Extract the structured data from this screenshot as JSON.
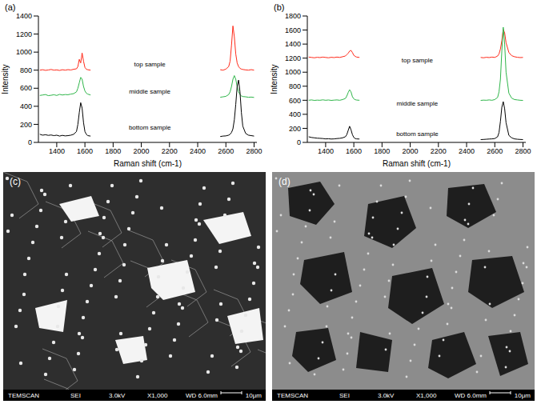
{
  "chart_data": [
    {
      "panel": "(a)",
      "type": "line",
      "x_label": "Raman shift (cm-1)",
      "y_label": "Intensity",
      "xlim": [
        1270,
        2820
      ],
      "xticks": [
        1400,
        1600,
        1800,
        2000,
        2200,
        2400,
        2600,
        2800
      ],
      "ylim": [
        0,
        1400
      ],
      "yticks": [
        0,
        200,
        400,
        600,
        800,
        1000,
        1200,
        1400
      ],
      "grid": false,
      "x": [
        1280,
        1300,
        1320,
        1340,
        1360,
        1380,
        1400,
        1420,
        1440,
        1460,
        1480,
        1500,
        1520,
        1540,
        1550,
        1560,
        1570,
        1580,
        1590,
        1600,
        1610,
        1620,
        1640,
        2100,
        2560,
        2580,
        2600,
        2620,
        2630,
        2640,
        2650,
        2660,
        2670,
        2680,
        2690,
        2700,
        2710,
        2720,
        2740,
        2760,
        2780,
        2800
      ],
      "series": [
        {
          "name": "top sample",
          "color": "#ff2a1a",
          "label_x": 2060,
          "label_y": 870,
          "values": [
            800,
            805,
            798,
            802,
            808,
            800,
            803,
            797,
            805,
            800,
            806,
            802,
            810,
            815,
            840,
            920,
            880,
            990,
            900,
            830,
            810,
            805,
            800,
            null,
            805,
            800,
            812,
            840,
            900,
            1080,
            1290,
            1170,
            980,
            880,
            840,
            820,
            812,
            808,
            803,
            800,
            806,
            800
          ]
        },
        {
          "name": "middle sample",
          "color": "#2fb64a",
          "label_x": 2060,
          "label_y": 570,
          "values": [
            520,
            525,
            530,
            518,
            522,
            528,
            520,
            532,
            525,
            530,
            528,
            535,
            540,
            560,
            600,
            660,
            720,
            700,
            620,
            570,
            545,
            535,
            525,
            null,
            500,
            505,
            510,
            530,
            560,
            620,
            700,
            740,
            700,
            620,
            560,
            530,
            515,
            508,
            505,
            500,
            502,
            498
          ]
        },
        {
          "name": "bottom sample",
          "color": "#000000",
          "label_x": 2060,
          "label_y": 170,
          "values": [
            90,
            80,
            85,
            78,
            82,
            75,
            80,
            70,
            78,
            72,
            75,
            80,
            90,
            120,
            200,
            330,
            440,
            380,
            220,
            120,
            90,
            75,
            70,
            null,
            65,
            70,
            72,
            80,
            90,
            110,
            150,
            250,
            420,
            620,
            690,
            560,
            330,
            180,
            100,
            80,
            75,
            70
          ]
        }
      ]
    },
    {
      "panel": "(b)",
      "type": "line",
      "x_label": "Raman shift (cm-1)",
      "y_label": "Intensity",
      "xlim": [
        1270,
        2820
      ],
      "xticks": [
        1400,
        1600,
        1800,
        2000,
        2200,
        2400,
        2600,
        2800
      ],
      "ylim": [
        0,
        1800
      ],
      "yticks": [
        0,
        200,
        400,
        600,
        800,
        1000,
        1200,
        1400,
        1600,
        1800
      ],
      "grid": false,
      "x": [
        1280,
        1300,
        1320,
        1340,
        1360,
        1380,
        1400,
        1420,
        1440,
        1460,
        1480,
        1500,
        1520,
        1540,
        1550,
        1560,
        1570,
        1580,
        1590,
        1600,
        1610,
        1620,
        1640,
        2080,
        2500,
        2520,
        2540,
        2560,
        2580,
        2600,
        2620,
        2630,
        2640,
        2650,
        2660,
        2670,
        2680,
        2700,
        2720,
        2740,
        2760,
        2780,
        2800
      ],
      "series": [
        {
          "name": "top sample",
          "color": "#ff2a1a",
          "label_x": 2050,
          "label_y": 1170,
          "values": [
            1215,
            1210,
            1205,
            1212,
            1208,
            1215,
            1210,
            1205,
            1212,
            1208,
            1215,
            1210,
            1220,
            1230,
            1250,
            1270,
            1300,
            1310,
            1280,
            1240,
            1225,
            1215,
            1210,
            null,
            1210,
            1205,
            1212,
            1208,
            1215,
            1210,
            1230,
            1260,
            1330,
            1450,
            1610,
            1560,
            1420,
            1280,
            1235,
            1220,
            1212,
            1208,
            1210
          ]
        },
        {
          "name": "middle sample",
          "color": "#2fb64a",
          "label_x": 2050,
          "label_y": 560,
          "values": [
            600,
            605,
            598,
            602,
            600,
            606,
            600,
            604,
            598,
            602,
            605,
            600,
            610,
            625,
            660,
            710,
            750,
            720,
            650,
            620,
            608,
            603,
            600,
            null,
            598,
            602,
            600,
            605,
            600,
            610,
            640,
            720,
            900,
            1300,
            1640,
            1400,
            1000,
            700,
            630,
            610,
            605,
            600,
            598
          ]
        },
        {
          "name": "bottom sample",
          "color": "#000000",
          "label_x": 2050,
          "label_y": 120,
          "values": [
            80,
            70,
            65,
            60,
            58,
            55,
            50,
            52,
            48,
            50,
            55,
            58,
            65,
            80,
            110,
            170,
            230,
            180,
            110,
            70,
            55,
            50,
            48,
            null,
            40,
            42,
            45,
            48,
            50,
            55,
            80,
            140,
            300,
            500,
            580,
            480,
            280,
            100,
            65,
            50,
            45,
            42,
            40
          ]
        }
      ]
    }
  ],
  "images": [
    {
      "panel": "(c)",
      "info": [
        "TEMSCAN",
        "SEI",
        "3.0kV",
        "X1,000",
        "WD 6.0mm"
      ],
      "scale_bar": "10μm"
    },
    {
      "panel": "(d)",
      "info": [
        "TEMSCAN",
        "SEI",
        "3.0kV",
        "X1,000",
        "WD 6.0mm"
      ],
      "scale_bar": "10μm"
    }
  ]
}
